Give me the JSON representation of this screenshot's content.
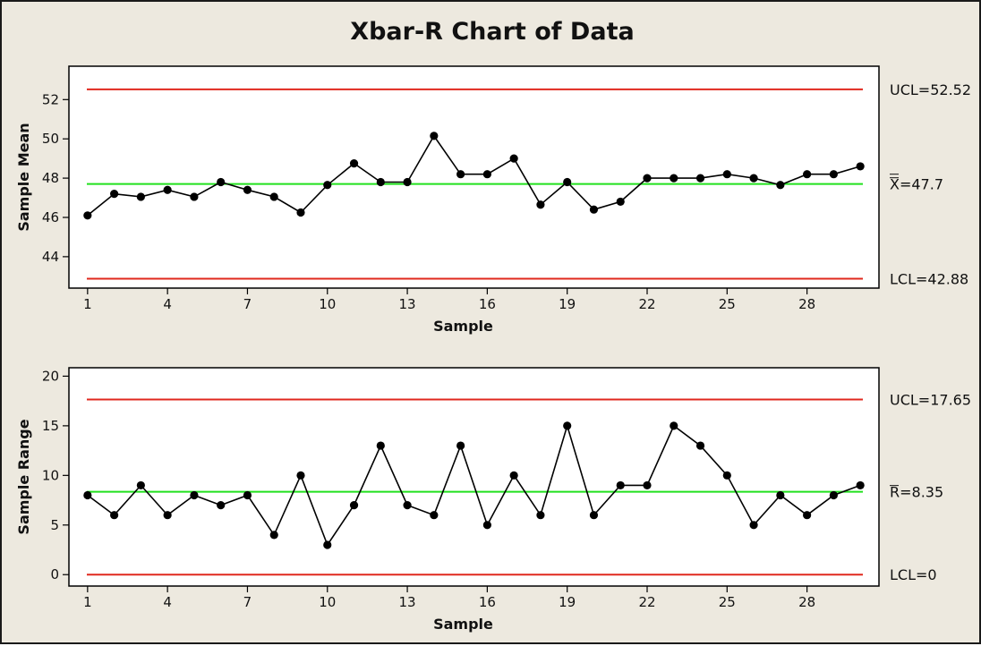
{
  "title": "Xbar-R Chart of Data",
  "colors": {
    "background": "#ede9df",
    "plot_bg": "#ffffff",
    "limit_line": "#e0281e",
    "center_line": "#22e01e",
    "series": "#000000"
  },
  "chart_data": [
    {
      "type": "line",
      "name": "xbar",
      "xlabel": "Sample",
      "ylabel": "Sample Mean",
      "x_ticks": [
        1,
        4,
        7,
        10,
        13,
        16,
        19,
        22,
        25,
        28
      ],
      "y_ticks": [
        44,
        46,
        48,
        50,
        52
      ],
      "xlim": [
        0.3,
        30.7
      ],
      "ylim": [
        42.4,
        53.7
      ],
      "x": [
        1,
        2,
        3,
        4,
        5,
        6,
        7,
        8,
        9,
        10,
        11,
        12,
        13,
        14,
        15,
        16,
        17,
        18,
        19,
        20,
        21,
        22,
        23,
        24,
        25,
        26,
        27,
        28,
        29,
        30
      ],
      "values": [
        46.1,
        47.2,
        47.05,
        47.4,
        47.05,
        47.8,
        47.4,
        47.05,
        46.25,
        47.65,
        48.75,
        47.8,
        47.8,
        50.15,
        48.2,
        48.2,
        49.0,
        46.65,
        47.8,
        46.4,
        46.8,
        48.0,
        48.0,
        48.0,
        48.2,
        48.0,
        47.65,
        48.2,
        48.2,
        48.6
      ],
      "ucl": 52.52,
      "center": 47.7,
      "lcl": 42.88,
      "ucl_label": "UCL=52.52",
      "center_label": "X=47.7",
      "lcl_label": "LCL=42.88",
      "grid": false
    },
    {
      "type": "line",
      "name": "range",
      "xlabel": "Sample",
      "ylabel": "Sample Range",
      "x_ticks": [
        1,
        4,
        7,
        10,
        13,
        16,
        19,
        22,
        25,
        28
      ],
      "y_ticks": [
        0,
        5,
        10,
        15,
        20
      ],
      "xlim": [
        0.3,
        30.7
      ],
      "ylim": [
        -1.15,
        20.85
      ],
      "x": [
        1,
        2,
        3,
        4,
        5,
        6,
        7,
        8,
        9,
        10,
        11,
        12,
        13,
        14,
        15,
        16,
        17,
        18,
        19,
        20,
        21,
        22,
        23,
        24,
        25,
        26,
        27,
        28,
        29,
        30
      ],
      "values": [
        8,
        6,
        9,
        6,
        8,
        7,
        8,
        4,
        10,
        3,
        7,
        13,
        7,
        6,
        13,
        5,
        10,
        6,
        15,
        6,
        9,
        9,
        15,
        13,
        10,
        5,
        8,
        6,
        8,
        9
      ],
      "ucl": 17.65,
      "center": 8.35,
      "lcl": 0,
      "ucl_label": "UCL=17.65",
      "center_label": "R=8.35",
      "lcl_label": "LCL=0",
      "grid": false
    }
  ]
}
